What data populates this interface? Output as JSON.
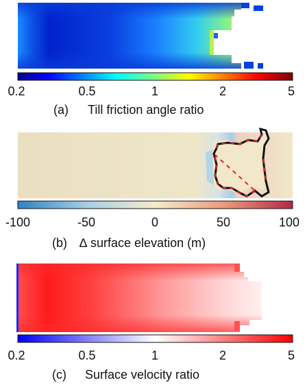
{
  "panels": [
    {
      "caption_letter": "(a)",
      "caption_text": "Till friction angle ratio",
      "colormap": "jet",
      "color_scale": "log",
      "tick_labels": [
        "0.2",
        "0.5",
        "1",
        "2",
        "5"
      ],
      "tick_values": [
        0.2,
        0.5,
        1,
        2,
        5
      ],
      "range": [
        0.2,
        5
      ]
    },
    {
      "caption_letter": "(b)",
      "caption_text": "∆ surface elevation (m)",
      "colormap": "diverging blue-beige-red",
      "color_scale": "linear",
      "tick_labels": [
        "-100",
        "-50",
        "0",
        "50",
        "100"
      ],
      "tick_values": [
        -100,
        -50,
        0,
        50,
        100
      ],
      "range": [
        -100,
        100
      ],
      "overlay_colors": [
        "#e8222b",
        "#111111"
      ]
    },
    {
      "caption_letter": "(c)",
      "caption_text": "Surface velocity ratio",
      "colormap": "blue-white-red",
      "color_scale": "log",
      "tick_labels": [
        "0.2",
        "0.5",
        "1",
        "2",
        "5"
      ],
      "tick_values": [
        0.2,
        0.5,
        1,
        2,
        5
      ],
      "range": [
        0.2,
        5
      ]
    }
  ]
}
